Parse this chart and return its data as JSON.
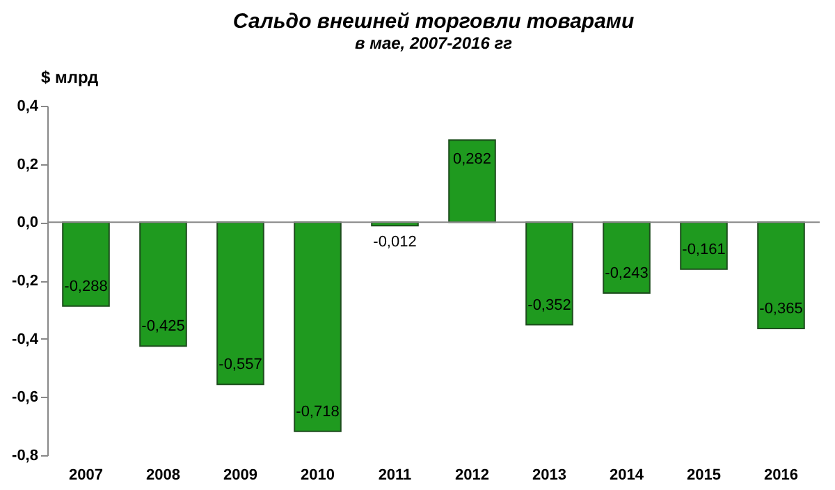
{
  "chart_data": {
    "type": "bar",
    "title": "Сальдо внешней торговли товарами",
    "subtitle": "в мае, 2007-2016 гг",
    "ylabel": "$ млрд",
    "categories": [
      "2007",
      "2008",
      "2009",
      "2010",
      "2011",
      "2012",
      "2013",
      "2014",
      "2015",
      "2016"
    ],
    "values": [
      -0.288,
      -0.425,
      -0.557,
      -0.718,
      -0.012,
      0.282,
      -0.352,
      -0.243,
      -0.161,
      -0.365
    ],
    "value_labels": [
      "-0,288",
      "-0,425",
      "-0,557",
      "-0,718",
      "-0,012",
      "0,282",
      "-0,352",
      "-0,243",
      "-0,161",
      "-0,365"
    ],
    "color": "#1f9a1f",
    "ylim": [
      -0.8,
      0.4
    ],
    "yticks": [
      {
        "value": -0.8,
        "label": "-0,8"
      },
      {
        "value": -0.6,
        "label": "-0,6"
      },
      {
        "value": -0.4,
        "label": "-0,4"
      },
      {
        "value": -0.2,
        "label": "-0,2"
      },
      {
        "value": 0,
        "label": "0,0"
      },
      {
        "value": 0.2,
        "label": "0,2"
      },
      {
        "value": 0.4,
        "label": "0,4"
      }
    ]
  }
}
